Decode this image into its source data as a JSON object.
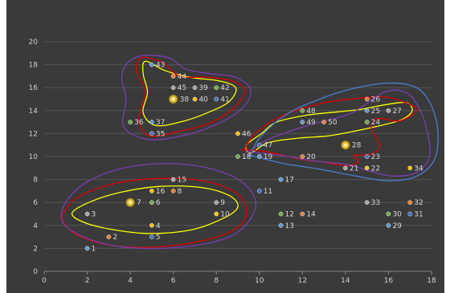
{
  "chart_data": {
    "type": "scatter",
    "title": "",
    "xlabel": "",
    "ylabel": "",
    "xlim": [
      0,
      18
    ],
    "ylim": [
      0,
      20
    ],
    "x_ticks": [
      0,
      2,
      4,
      6,
      8,
      10,
      12,
      14,
      16,
      18
    ],
    "y_ticks": [
      0,
      2,
      4,
      6,
      8,
      10,
      12,
      14,
      16,
      18,
      20
    ],
    "grid": "horizontal",
    "points": [
      {
        "label": "1",
        "x": 2,
        "y": 2,
        "color": "#5b9bd5"
      },
      {
        "label": "2",
        "x": 3,
        "y": 3,
        "color": "#ed7d31"
      },
      {
        "label": "3",
        "x": 2,
        "y": 5,
        "color": "#a5a5a5"
      },
      {
        "label": "4",
        "x": 5,
        "y": 4,
        "color": "#ffc000"
      },
      {
        "label": "5",
        "x": 5,
        "y": 3,
        "color": "#4472c4"
      },
      {
        "label": "6",
        "x": 5,
        "y": 6,
        "color": "#70ad47"
      },
      {
        "label": "7",
        "x": 4,
        "y": 6,
        "color": "#ffc000"
      },
      {
        "label": "8",
        "x": 6,
        "y": 7,
        "color": "#ed7d31"
      },
      {
        "label": "9",
        "x": 8,
        "y": 6,
        "color": "#a5a5a5"
      },
      {
        "label": "10",
        "x": 8,
        "y": 5,
        "color": "#ffc000"
      },
      {
        "label": "11",
        "x": 10,
        "y": 7,
        "color": "#4472c4"
      },
      {
        "label": "12",
        "x": 11,
        "y": 5,
        "color": "#70ad47"
      },
      {
        "label": "13",
        "x": 11,
        "y": 4,
        "color": "#5b9bd5"
      },
      {
        "label": "14",
        "x": 12,
        "y": 5,
        "color": "#ed7d31"
      },
      {
        "label": "15",
        "x": 6,
        "y": 8,
        "color": "#a5a5a5"
      },
      {
        "label": "16",
        "x": 5,
        "y": 7,
        "color": "#ffc000"
      },
      {
        "label": "17",
        "x": 11,
        "y": 8,
        "color": "#5b9bd5"
      },
      {
        "label": "18",
        "x": 9,
        "y": 10,
        "color": "#70ad47"
      },
      {
        "label": "19",
        "x": 10,
        "y": 10,
        "color": "#5b9bd5"
      },
      {
        "label": "20",
        "x": 12,
        "y": 10,
        "color": "#ed7d31"
      },
      {
        "label": "21",
        "x": 14,
        "y": 9,
        "color": "#a5a5a5"
      },
      {
        "label": "22",
        "x": 15,
        "y": 9,
        "color": "#ffc000"
      },
      {
        "label": "23",
        "x": 15,
        "y": 10,
        "color": "#4472c4"
      },
      {
        "label": "24",
        "x": 15,
        "y": 13,
        "color": "#70ad47"
      },
      {
        "label": "25",
        "x": 15,
        "y": 14,
        "color": "#5b9bd5"
      },
      {
        "label": "26",
        "x": 15,
        "y": 15,
        "color": "#ed7d31"
      },
      {
        "label": "27",
        "x": 16,
        "y": 14,
        "color": "#a5a5a5"
      },
      {
        "label": "28",
        "x": 14,
        "y": 11,
        "color": "#ffc000"
      },
      {
        "label": "29",
        "x": 16,
        "y": 4,
        "color": "#5b9bd5"
      },
      {
        "label": "30",
        "x": 16,
        "y": 5,
        "color": "#70ad47"
      },
      {
        "label": "31",
        "x": 17,
        "y": 5,
        "color": "#4472c4"
      },
      {
        "label": "32",
        "x": 17,
        "y": 6,
        "color": "#ed7d31"
      },
      {
        "label": "33",
        "x": 15,
        "y": 6,
        "color": "#a5a5a5"
      },
      {
        "label": "34",
        "x": 17,
        "y": 9,
        "color": "#ffc000"
      },
      {
        "label": "35",
        "x": 5,
        "y": 12,
        "color": "#4472c4"
      },
      {
        "label": "36",
        "x": 4,
        "y": 13,
        "color": "#70ad47"
      },
      {
        "label": "37",
        "x": 5,
        "y": 13,
        "color": "#5b9bd5"
      },
      {
        "label": "38",
        "x": 6,
        "y": 15,
        "color": "#ffc000"
      },
      {
        "label": "39",
        "x": 7,
        "y": 16,
        "color": "#a5a5a5"
      },
      {
        "label": "40",
        "x": 7,
        "y": 15,
        "color": "#ffc000"
      },
      {
        "label": "41",
        "x": 8,
        "y": 15,
        "color": "#4472c4"
      },
      {
        "label": "42",
        "x": 8,
        "y": 16,
        "color": "#70ad47"
      },
      {
        "label": "43",
        "x": 5,
        "y": 18,
        "color": "#5b9bd5"
      },
      {
        "label": "44",
        "x": 6,
        "y": 17,
        "color": "#ed7d31"
      },
      {
        "label": "45",
        "x": 6,
        "y": 16,
        "color": "#a5a5a5"
      },
      {
        "label": "46",
        "x": 9,
        "y": 12,
        "color": "#ffc000"
      },
      {
        "label": "47",
        "x": 10,
        "y": 11,
        "color": "#4472c4"
      },
      {
        "label": "48",
        "x": 12,
        "y": 14,
        "color": "#70ad47"
      },
      {
        "label": "49",
        "x": 12,
        "y": 13,
        "color": "#5b9bd5"
      },
      {
        "label": "50",
        "x": 13,
        "y": 13,
        "color": "#ed7d31"
      }
    ],
    "highlighted": [
      "7",
      "28",
      "38"
    ],
    "outline_colors": [
      "#ffff00",
      "#e00000",
      "#7a3fb0",
      "#4a7fd0"
    ],
    "clusters": [
      {
        "members": [
          "1",
          "2",
          "3",
          "4",
          "5",
          "6",
          "7",
          "8",
          "9",
          "10",
          "15",
          "16"
        ],
        "outlines": [
          {
            "color": "#ffff00",
            "points": [
              [
                1.3,
                5.1
              ],
              [
                1.8,
                4.3
              ],
              [
                3,
                3.7
              ],
              [
                4.8,
                3.3
              ],
              [
                6.8,
                3.6
              ],
              [
                8.3,
                4.6
              ],
              [
                9,
                5.6
              ],
              [
                8.6,
                6.6
              ],
              [
                7.3,
                7.3
              ],
              [
                5.4,
                7.4
              ],
              [
                3.6,
                6.9
              ],
              [
                2.2,
                6.1
              ]
            ]
          },
          {
            "color": "#e00000",
            "points": [
              [
                0.9,
                4.3
              ],
              [
                1.6,
                3.1
              ],
              [
                3,
                2.3
              ],
              [
                5,
                2.1
              ],
              [
                7.2,
                2.6
              ],
              [
                8.8,
                3.6
              ],
              [
                9.4,
                5
              ],
              [
                9,
                6.7
              ],
              [
                7.6,
                7.8
              ],
              [
                5.6,
                8.1
              ],
              [
                3.4,
                7.7
              ],
              [
                1.7,
                6.6
              ],
              [
                1,
                5.4
              ]
            ]
          },
          {
            "color": "#7a3fb0",
            "points": [
              [
                0.8,
                4.6
              ],
              [
                1.4,
                3.4
              ],
              [
                2.8,
                2.4
              ],
              [
                4.6,
                2
              ],
              [
                6.8,
                2.2
              ],
              [
                8.6,
                3
              ],
              [
                9.6,
                4.6
              ],
              [
                9.8,
                6.3
              ],
              [
                9.1,
                7.9
              ],
              [
                7.6,
                9
              ],
              [
                5.7,
                9.4
              ],
              [
                3.7,
                9
              ],
              [
                2.1,
                7.9
              ],
              [
                1.1,
                6.3
              ]
            ]
          }
        ]
      },
      {
        "members": [
          "35",
          "36",
          "37",
          "38",
          "39",
          "40",
          "41",
          "42",
          "43",
          "44",
          "45"
        ],
        "outlines": [
          {
            "color": "#ffff00",
            "points": [
              [
                4.7,
                18.3
              ],
              [
                5.6,
                17.5
              ],
              [
                6.8,
                16.9
              ],
              [
                8.1,
                16.6
              ],
              [
                8.9,
                16
              ],
              [
                8.6,
                14.8
              ],
              [
                7.7,
                13.9
              ],
              [
                6.5,
                13.1
              ],
              [
                5.2,
                12.7
              ],
              [
                4.6,
                13.8
              ],
              [
                4.8,
                15.6
              ],
              [
                4.6,
                17.2
              ]
            ]
          },
          {
            "color": "#e00000",
            "points": [
              [
                4.5,
                18.6
              ],
              [
                5.5,
                18.2
              ],
              [
                6.3,
                17
              ],
              [
                7.6,
                16.9
              ],
              [
                8.7,
                16.6
              ],
              [
                9.3,
                15.8
              ],
              [
                8.9,
                14.4
              ],
              [
                7.8,
                13
              ],
              [
                6.3,
                12.2
              ],
              [
                4.9,
                11.8
              ],
              [
                4.4,
                13.2
              ],
              [
                4.7,
                15.6
              ],
              [
                4.3,
                17.4
              ]
            ]
          },
          {
            "color": "#7a3fb0",
            "points": [
              [
                3.9,
                18.2
              ],
              [
                4.6,
                18.8
              ],
              [
                5.8,
                18.6
              ],
              [
                6.6,
                17.6
              ],
              [
                7.8,
                17.2
              ],
              [
                8.9,
                16.9
              ],
              [
                9.6,
                15.8
              ],
              [
                9.2,
                14.2
              ],
              [
                8,
                12.8
              ],
              [
                6.4,
                11.8
              ],
              [
                4.8,
                11.5
              ],
              [
                3.7,
                12.6
              ],
              [
                3.8,
                15
              ],
              [
                3.6,
                16.9
              ]
            ]
          }
        ]
      },
      {
        "members": [
          "11",
          "12",
          "13",
          "14",
          "17",
          "18",
          "19",
          "20",
          "21",
          "22",
          "23",
          "24",
          "25",
          "26",
          "27",
          "28",
          "29",
          "30",
          "31",
          "32",
          "33",
          "34",
          "46",
          "47",
          "48",
          "49",
          "50"
        ],
        "outlines": [
          {
            "color": "#ffff00",
            "points": [
              [
                9.6,
                10.3
              ],
              [
                10.4,
                11.2
              ],
              [
                11.8,
                11.6
              ],
              [
                13.2,
                11.8
              ],
              [
                14.4,
                12.2
              ],
              [
                15.4,
                12.6
              ],
              [
                16.6,
                13.2
              ],
              [
                17.1,
                14
              ],
              [
                16.8,
                14.7
              ],
              [
                15.8,
                14.5
              ],
              [
                14.7,
                14.1
              ],
              [
                13.7,
                13.9
              ],
              [
                12.2,
                13.6
              ],
              [
                10.8,
                13
              ],
              [
                10.1,
                12
              ],
              [
                9.4,
                11
              ]
            ]
          },
          {
            "color": "#e00000",
            "points": [
              [
                9.3,
                10.6
              ],
              [
                9.8,
                12
              ],
              [
                11,
                13.5
              ],
              [
                12.8,
                14.6
              ],
              [
                14.3,
                15
              ],
              [
                15.8,
                15.2
              ],
              [
                16.9,
                14.6
              ],
              [
                17.3,
                14
              ],
              [
                16.5,
                13.1
              ],
              [
                15.5,
                13.3
              ],
              [
                15.2,
                12.4
              ],
              [
                15.6,
                11
              ],
              [
                15.2,
                10.2
              ],
              [
                14.4,
                10.1
              ],
              [
                14.6,
                9.6
              ],
              [
                14.1,
                9.2
              ],
              [
                13,
                9.5
              ],
              [
                11.8,
                9.8
              ],
              [
                10.4,
                10.4
              ],
              [
                9.3,
                10.6
              ]
            ]
          },
          {
            "color": "#7a3fb0",
            "points": [
              [
                9.5,
                10.4
              ],
              [
                10.2,
                11.3
              ],
              [
                11.4,
                12.2
              ],
              [
                12.8,
                13
              ],
              [
                14.3,
                13.8
              ],
              [
                15.8,
                15.6
              ],
              [
                16.8,
                15.6
              ],
              [
                17.4,
                14.3
              ],
              [
                17.8,
                12.2
              ],
              [
                17.9,
                10
              ],
              [
                17.3,
                8.6
              ],
              [
                16.2,
                8.3
              ],
              [
                15.2,
                8.7
              ],
              [
                14.1,
                9.3
              ],
              [
                12.6,
                9.6
              ],
              [
                11,
                10.1
              ],
              [
                9.5,
                10.4
              ]
            ]
          },
          {
            "color": "#4a7fd0",
            "points": [
              [
                9.6,
                10.1
              ],
              [
                10,
                11.6
              ],
              [
                11.2,
                13.6
              ],
              [
                12.8,
                15
              ],
              [
                14.3,
                15.9
              ],
              [
                16,
                16.4
              ],
              [
                17.3,
                16
              ],
              [
                18,
                14.4
              ],
              [
                18.3,
                12
              ],
              [
                18.1,
                9.6
              ],
              [
                17.2,
                8.2
              ],
              [
                15.9,
                7.9
              ],
              [
                14.5,
                8.3
              ],
              [
                12.8,
                8.9
              ],
              [
                11.1,
                9.4
              ],
              [
                9.6,
                10.1
              ]
            ]
          }
        ]
      }
    ]
  }
}
